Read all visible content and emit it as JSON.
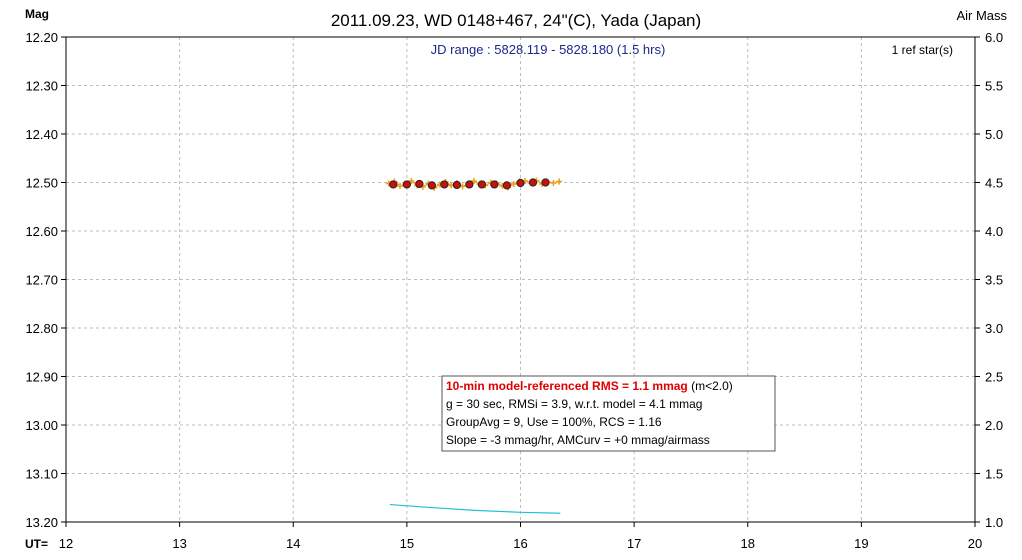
{
  "chart_data": {
    "type": "scatter",
    "title": "2011.09.23, WD 0148+467, 24\"(C), Yada (Japan)",
    "ylabel_left": "Mag",
    "ylabel_right": "Air Mass",
    "xlabel": "UT=",
    "xlim": [
      12,
      20
    ],
    "ylim_left": [
      12.2,
      13.2
    ],
    "ylim_left_inverted": true,
    "ylim_right": [
      1.0,
      6.0
    ],
    "x_ticks": [
      "12",
      "13",
      "14",
      "15",
      "16",
      "17",
      "18",
      "19",
      "20"
    ],
    "y_ticks_left": [
      "12.20",
      "12.30",
      "12.40",
      "12.50",
      "12.60",
      "12.70",
      "12.80",
      "12.90",
      "13.00",
      "13.10",
      "13.20"
    ],
    "y_ticks_right": [
      "6.0",
      "5.5",
      "5.0",
      "4.5",
      "4.0",
      "3.5",
      "3.0",
      "2.5",
      "2.0",
      "1.5",
      "1.0"
    ],
    "grid": true,
    "jd_range": "JD range : 5828.119 - 5828.180 (1.5 hrs)",
    "ref_stars": "1 ref star(s)",
    "series": [
      {
        "role": "individual",
        "color": "#f0a020",
        "x": [
          14.84,
          14.89,
          14.94,
          14.99,
          15.04,
          15.09,
          15.14,
          15.19,
          15.24,
          15.29,
          15.34,
          15.39,
          15.44,
          15.49,
          15.54,
          15.59,
          15.64,
          15.69,
          15.74,
          15.79,
          15.84,
          15.89,
          15.94,
          15.99,
          16.04,
          16.09,
          16.14,
          16.19,
          16.24,
          16.29,
          16.34
        ],
        "values": [
          12.502,
          12.498,
          12.507,
          12.503,
          12.497,
          12.506,
          12.509,
          12.502,
          12.511,
          12.504,
          12.499,
          12.506,
          12.501,
          12.508,
          12.503,
          12.497,
          12.504,
          12.506,
          12.5,
          12.502,
          12.507,
          12.51,
          12.503,
          12.498,
          12.497,
          12.501,
          12.496,
          12.503,
          12.499,
          12.501,
          12.498
        ]
      },
      {
        "role": "group-average",
        "color": "#cc1010",
        "x": [
          14.88,
          15.0,
          15.11,
          15.22,
          15.33,
          15.44,
          15.55,
          15.66,
          15.77,
          15.88,
          16.0,
          16.11,
          16.22
        ],
        "values": [
          12.504,
          12.504,
          12.503,
          12.506,
          12.504,
          12.505,
          12.504,
          12.504,
          12.504,
          12.506,
          12.501,
          12.5,
          12.5
        ]
      },
      {
        "role": "air-mass",
        "axis": "right",
        "color": "#20c0d0",
        "x": [
          14.85,
          15.2,
          15.6,
          16.0,
          16.35
        ],
        "values": [
          1.18,
          1.15,
          1.12,
          1.1,
          1.09
        ]
      }
    ]
  },
  "info_box": {
    "line1_red": "10-min model-referenced RMS = 1.1 mmag",
    "line1_suffix": " (m<2.0)",
    "line2": "g = 30 sec, RMSi = 3.9, w.r.t. model = 4.1 mmag",
    "line3": "GroupAvg = 9, Use = 100%, RCS = 1.16",
    "line4": "Slope = -3 mmag/hr, AMCurv = +0 mmag/airmass"
  }
}
